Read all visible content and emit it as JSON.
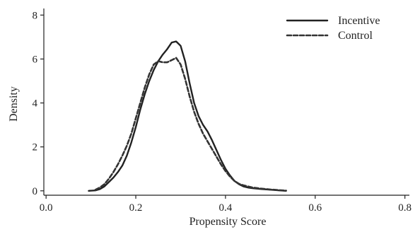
{
  "chart_data": {
    "type": "line",
    "title": "",
    "xlabel": "Propensity Score",
    "ylabel": "Density",
    "xlim": [
      -0.005,
      0.81
    ],
    "ylim": [
      -0.2,
      8.3
    ],
    "xticks": [
      0.0,
      0.2,
      0.4,
      0.6,
      0.8
    ],
    "xtick_labels": [
      "0.0",
      "0.2",
      "0.4",
      "0.6",
      "0.8"
    ],
    "yticks": [
      0,
      2,
      4,
      6,
      8
    ],
    "ytick_labels": [
      "0",
      "2",
      "4",
      "6",
      "8"
    ],
    "grid": false,
    "legend_position": "top-right",
    "series": [
      {
        "name": "Incentive",
        "style": "solid",
        "color": "#222222",
        "x": [
          0.095,
          0.11,
          0.12,
          0.13,
          0.14,
          0.15,
          0.16,
          0.17,
          0.18,
          0.19,
          0.2,
          0.21,
          0.22,
          0.23,
          0.24,
          0.25,
          0.26,
          0.27,
          0.28,
          0.29,
          0.3,
          0.31,
          0.32,
          0.33,
          0.34,
          0.35,
          0.36,
          0.37,
          0.38,
          0.39,
          0.4,
          0.41,
          0.42,
          0.43,
          0.44,
          0.45,
          0.46,
          0.47,
          0.48,
          0.5,
          0.52,
          0.535
        ],
        "y": [
          0.0,
          0.02,
          0.08,
          0.2,
          0.4,
          0.6,
          0.85,
          1.15,
          1.6,
          2.2,
          2.9,
          3.7,
          4.4,
          5.0,
          5.5,
          5.9,
          6.2,
          6.45,
          6.75,
          6.8,
          6.6,
          5.9,
          4.9,
          4.0,
          3.4,
          3.0,
          2.7,
          2.3,
          1.85,
          1.4,
          1.0,
          0.7,
          0.45,
          0.3,
          0.2,
          0.15,
          0.12,
          0.1,
          0.08,
          0.05,
          0.02,
          0.0
        ]
      },
      {
        "name": "Control",
        "style": "dashed",
        "color": "#333333",
        "x": [
          0.11,
          0.12,
          0.13,
          0.14,
          0.15,
          0.16,
          0.17,
          0.18,
          0.19,
          0.2,
          0.21,
          0.22,
          0.23,
          0.24,
          0.25,
          0.26,
          0.27,
          0.28,
          0.29,
          0.3,
          0.31,
          0.32,
          0.33,
          0.34,
          0.35,
          0.36,
          0.37,
          0.38,
          0.39,
          0.4,
          0.41,
          0.42,
          0.43,
          0.44,
          0.45,
          0.46,
          0.48,
          0.5,
          0.52,
          0.535
        ],
        "y": [
          0.05,
          0.15,
          0.3,
          0.55,
          0.85,
          1.2,
          1.6,
          2.05,
          2.6,
          3.3,
          4.0,
          4.7,
          5.3,
          5.75,
          5.9,
          5.85,
          5.85,
          5.95,
          6.05,
          5.75,
          5.1,
          4.3,
          3.6,
          3.05,
          2.6,
          2.25,
          1.9,
          1.55,
          1.2,
          0.9,
          0.65,
          0.45,
          0.32,
          0.25,
          0.2,
          0.15,
          0.1,
          0.06,
          0.03,
          0.01
        ]
      }
    ]
  }
}
